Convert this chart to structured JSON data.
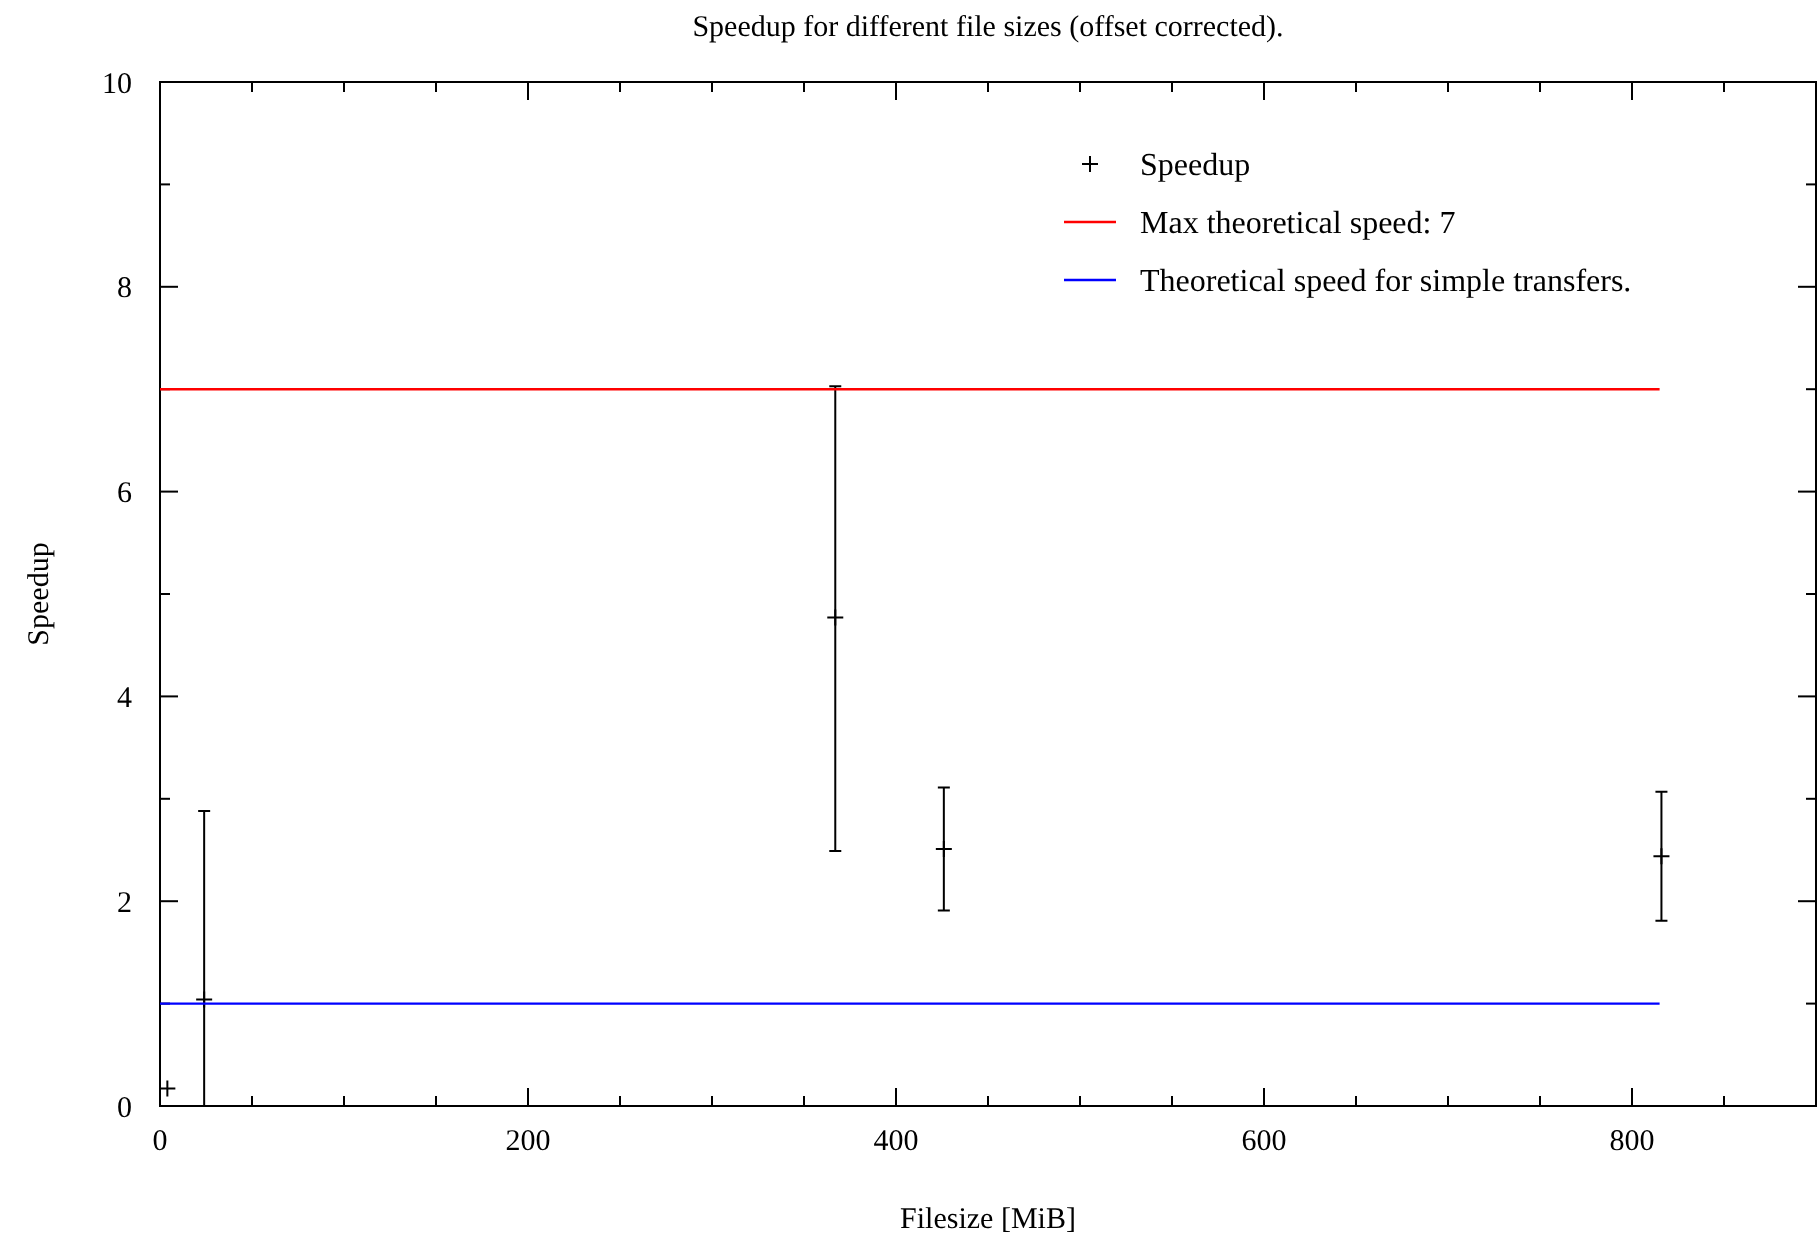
{
  "chart_data": {
    "type": "scatter",
    "title": "Speedup for different file sizes (offset corrected).",
    "xlabel": "Filesize [MiB]",
    "ylabel": "Speedup",
    "xlim": [
      0,
      900
    ],
    "ylim": [
      0,
      10
    ],
    "xticks": [
      0,
      {
        "value": 50,
        "label": null
      },
      {
        "value": 100,
        "label": null
      },
      {
        "value": 150,
        "label": null
      },
      200,
      {
        "value": 250,
        "label": null
      },
      {
        "value": 300,
        "label": null
      },
      {
        "value": 350,
        "label": null
      },
      400,
      {
        "value": 450,
        "label": null
      },
      {
        "value": 500,
        "label": null
      },
      {
        "value": 550,
        "label": null
      },
      600,
      {
        "value": 650,
        "label": null
      },
      {
        "value": 700,
        "label": null
      },
      {
        "value": 750,
        "label": null
      },
      800,
      {
        "value": 850,
        "label": null
      }
    ],
    "yticks": [
      0,
      {
        "value": 1,
        "label": null
      },
      2,
      {
        "value": 3,
        "label": null
      },
      4,
      {
        "value": 5,
        "label": null
      },
      6,
      {
        "value": 7,
        "label": null
      },
      8,
      {
        "value": 9,
        "label": null
      },
      10
    ],
    "legend": "top right",
    "grid": false,
    "series": [
      {
        "name": "Speedup",
        "marker": "cross",
        "color": "#000000",
        "x": [
          4,
          24,
          367,
          426,
          816
        ],
        "values": [
          0.17,
          1.04,
          4.77,
          2.51,
          2.44
        ],
        "errors": [
          null,
          [
            0,
            2.88
          ],
          [
            2.49,
            7.03
          ],
          [
            1.91,
            3.11
          ],
          [
            1.81,
            3.07
          ]
        ]
      },
      {
        "name": "Max theoretical speed: 7",
        "type": "line",
        "color": "#ff0000",
        "x": [
          0,
          815
        ],
        "values": [
          7,
          7
        ]
      },
      {
        "name": "Theoretical speed for simple transfers.",
        "type": "line",
        "color": "#0000ff",
        "x": [
          0,
          815
        ],
        "values": [
          1,
          1
        ]
      }
    ]
  }
}
